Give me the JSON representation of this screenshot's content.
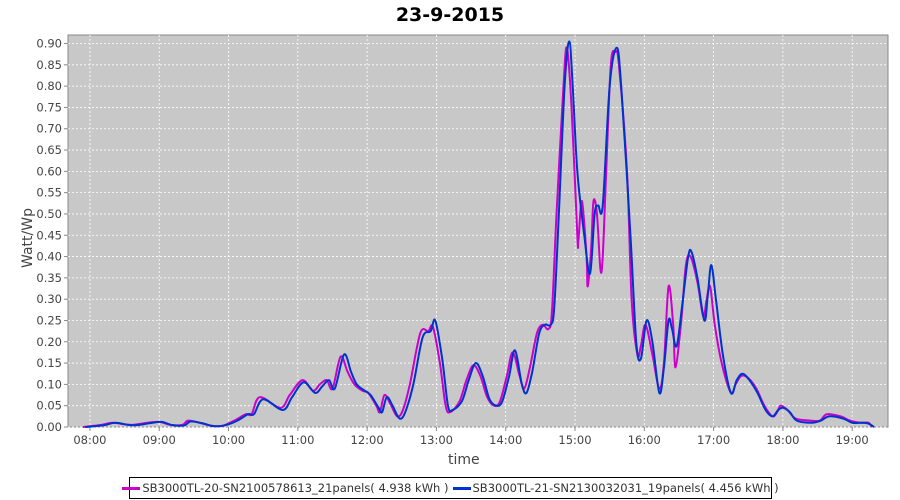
{
  "chart_data": {
    "type": "line",
    "title": "23-9-2015",
    "xlabel": "time",
    "ylabel": "Watt/Wp",
    "xlim": [
      "07:41",
      "19:31"
    ],
    "ylim": [
      0,
      0.92
    ],
    "x_ticks": [
      "08:00",
      "09:00",
      "10:00",
      "11:00",
      "12:00",
      "13:00",
      "14:00",
      "15:00",
      "16:00",
      "17:00",
      "18:00",
      "19:00"
    ],
    "y_ticks": [
      "0.00",
      "0.05",
      "0.10",
      "0.15",
      "0.20",
      "0.25",
      "0.30",
      "0.35",
      "0.40",
      "0.45",
      "0.50",
      "0.55",
      "0.60",
      "0.65",
      "0.70",
      "0.75",
      "0.80",
      "0.85",
      "0.90"
    ],
    "grid": true,
    "background": "#c8c8c8",
    "legend_position": "bottom",
    "series": [
      {
        "name": "SB3000TL-20-SN2100578613_21panels( 4.938 kWh )",
        "color": "#cc00cc",
        "points": [
          [
            "07:54",
            0
          ],
          [
            "08:10",
            0.005
          ],
          [
            "08:20",
            0.01
          ],
          [
            "08:35",
            0.005
          ],
          [
            "08:50",
            0.01
          ],
          [
            "09:00",
            0.012
          ],
          [
            "09:10",
            0.005
          ],
          [
            "09:20",
            0.005
          ],
          [
            "09:25",
            0.015
          ],
          [
            "09:35",
            0.01
          ],
          [
            "09:45",
            0.003
          ],
          [
            "09:55",
            0.003
          ],
          [
            "10:05",
            0.015
          ],
          [
            "10:15",
            0.03
          ],
          [
            "10:20",
            0.03
          ],
          [
            "10:27",
            0.07
          ],
          [
            "10:45",
            0.045
          ],
          [
            "10:53",
            0.075
          ],
          [
            "11:04",
            0.11
          ],
          [
            "11:13",
            0.085
          ],
          [
            "11:19",
            0.1
          ],
          [
            "11:25",
            0.11
          ],
          [
            "11:30",
            0.09
          ],
          [
            "11:37",
            0.165
          ],
          [
            "11:43",
            0.13
          ],
          [
            "11:49",
            0.1
          ],
          [
            "11:56",
            0.085
          ],
          [
            "12:01",
            0.08
          ],
          [
            "12:08",
            0.05
          ],
          [
            "12:11",
            0.035
          ],
          [
            "12:15",
            0.075
          ],
          [
            "12:20",
            0.055
          ],
          [
            "12:26",
            0.025
          ],
          [
            "12:31",
            0.04
          ],
          [
            "12:37",
            0.1
          ],
          [
            "12:46",
            0.22
          ],
          [
            "12:53",
            0.225
          ],
          [
            "12:57",
            0.235
          ],
          [
            "13:03",
            0.15
          ],
          [
            "13:08",
            0.05
          ],
          [
            "13:12",
            0.035
          ],
          [
            "13:20",
            0.06
          ],
          [
            "13:26",
            0.11
          ],
          [
            "13:32",
            0.145
          ],
          [
            "13:38",
            0.12
          ],
          [
            "13:44",
            0.07
          ],
          [
            "13:50",
            0.05
          ],
          [
            "13:55",
            0.06
          ],
          [
            "14:01",
            0.12
          ],
          [
            "14:06",
            0.175
          ],
          [
            "14:12",
            0.12
          ],
          [
            "14:16",
            0.09
          ],
          [
            "14:21",
            0.14
          ],
          [
            "14:27",
            0.22
          ],
          [
            "14:32",
            0.24
          ],
          [
            "14:37",
            0.23
          ],
          [
            "14:40",
            0.27
          ],
          [
            "14:44",
            0.5
          ],
          [
            "14:50",
            0.8
          ],
          [
            "14:53",
            0.89
          ],
          [
            "14:57",
            0.75
          ],
          [
            "15:02",
            0.45
          ],
          [
            "15:03",
            0.44
          ],
          [
            "15:06",
            0.53
          ],
          [
            "15:10",
            0.4
          ],
          [
            "15:11",
            0.33
          ],
          [
            "15:14",
            0.42
          ],
          [
            "15:16",
            0.53
          ],
          [
            "15:19",
            0.5
          ],
          [
            "15:22",
            0.37
          ],
          [
            "15:24",
            0.4
          ],
          [
            "15:27",
            0.6
          ],
          [
            "15:31",
            0.85
          ],
          [
            "15:35",
            0.88
          ],
          [
            "15:38",
            0.85
          ],
          [
            "15:45",
            0.6
          ],
          [
            "15:49",
            0.3
          ],
          [
            "15:54",
            0.17
          ],
          [
            "15:57",
            0.19
          ],
          [
            "16:01",
            0.24
          ],
          [
            "16:07",
            0.17
          ],
          [
            "16:13",
            0.09
          ],
          [
            "16:17",
            0.15
          ],
          [
            "16:21",
            0.33
          ],
          [
            "16:25",
            0.24
          ],
          [
            "16:27",
            0.14
          ],
          [
            "16:32",
            0.25
          ],
          [
            "16:36",
            0.38
          ],
          [
            "16:40",
            0.4
          ],
          [
            "16:46",
            0.34
          ],
          [
            "16:51",
            0.26
          ],
          [
            "16:54",
            0.3
          ],
          [
            "16:57",
            0.33
          ],
          [
            "17:01",
            0.24
          ],
          [
            "17:07",
            0.15
          ],
          [
            "17:15",
            0.08
          ],
          [
            "17:19",
            0.1
          ],
          [
            "17:24",
            0.12
          ],
          [
            "17:30",
            0.115
          ],
          [
            "17:37",
            0.09
          ],
          [
            "17:44",
            0.05
          ],
          [
            "17:51",
            0.025
          ],
          [
            "17:55",
            0.035
          ],
          [
            "17:58",
            0.05
          ],
          [
            "18:04",
            0.04
          ],
          [
            "18:11",
            0.02
          ],
          [
            "18:24",
            0.015
          ],
          [
            "18:32",
            0.015
          ],
          [
            "18:38",
            0.03
          ],
          [
            "18:50",
            0.025
          ],
          [
            "18:58",
            0.015
          ],
          [
            "19:07",
            0.01
          ],
          [
            "19:14",
            0.01
          ],
          [
            "19:17",
            0
          ]
        ]
      },
      {
        "name": "SB3000TL-21-SN2130032031_19panels( 4.456 kWh )",
        "color": "#0033cc",
        "points": [
          [
            "07:56",
            0
          ],
          [
            "08:12",
            0.004
          ],
          [
            "08:22",
            0.01
          ],
          [
            "08:37",
            0.004
          ],
          [
            "08:52",
            0.009
          ],
          [
            "09:02",
            0.012
          ],
          [
            "09:12",
            0.004
          ],
          [
            "09:22",
            0.004
          ],
          [
            "09:27",
            0.013
          ],
          [
            "09:37",
            0.009
          ],
          [
            "09:47",
            0.002
          ],
          [
            "09:57",
            0.004
          ],
          [
            "10:07",
            0.014
          ],
          [
            "10:17",
            0.03
          ],
          [
            "10:22",
            0.03
          ],
          [
            "10:30",
            0.065
          ],
          [
            "10:47",
            0.04
          ],
          [
            "10:55",
            0.07
          ],
          [
            "11:05",
            0.105
          ],
          [
            "11:15",
            0.08
          ],
          [
            "11:21",
            0.095
          ],
          [
            "11:27",
            0.11
          ],
          [
            "11:32",
            0.09
          ],
          [
            "11:40",
            0.17
          ],
          [
            "11:46",
            0.13
          ],
          [
            "11:51",
            0.1
          ],
          [
            "11:58",
            0.085
          ],
          [
            "12:03",
            0.075
          ],
          [
            "12:10",
            0.045
          ],
          [
            "12:13",
            0.035
          ],
          [
            "12:17",
            0.07
          ],
          [
            "12:22",
            0.05
          ],
          [
            "12:28",
            0.02
          ],
          [
            "12:33",
            0.035
          ],
          [
            "12:40",
            0.1
          ],
          [
            "12:48",
            0.21
          ],
          [
            "12:55",
            0.225
          ],
          [
            "12:59",
            0.25
          ],
          [
            "13:05",
            0.16
          ],
          [
            "13:10",
            0.05
          ],
          [
            "13:14",
            0.04
          ],
          [
            "13:22",
            0.06
          ],
          [
            "13:28",
            0.11
          ],
          [
            "13:34",
            0.15
          ],
          [
            "13:40",
            0.12
          ],
          [
            "13:46",
            0.065
          ],
          [
            "13:52",
            0.05
          ],
          [
            "13:57",
            0.06
          ],
          [
            "14:03",
            0.12
          ],
          [
            "14:08",
            0.18
          ],
          [
            "14:14",
            0.1
          ],
          [
            "14:18",
            0.08
          ],
          [
            "14:23",
            0.13
          ],
          [
            "14:29",
            0.22
          ],
          [
            "14:34",
            0.24
          ],
          [
            "14:39",
            0.24
          ],
          [
            "14:42",
            0.28
          ],
          [
            "14:46",
            0.5
          ],
          [
            "14:51",
            0.8
          ],
          [
            "14:55",
            0.905
          ],
          [
            "14:58",
            0.8
          ],
          [
            "15:02",
            0.6
          ],
          [
            "15:08",
            0.45
          ],
          [
            "15:13",
            0.36
          ],
          [
            "15:17",
            0.5
          ],
          [
            "15:20",
            0.52
          ],
          [
            "15:24",
            0.52
          ],
          [
            "15:30",
            0.8
          ],
          [
            "15:36",
            0.89
          ],
          [
            "15:40",
            0.8
          ],
          [
            "15:48",
            0.45
          ],
          [
            "15:53",
            0.2
          ],
          [
            "15:57",
            0.16
          ],
          [
            "16:02",
            0.25
          ],
          [
            "16:07",
            0.2
          ],
          [
            "16:13",
            0.08
          ],
          [
            "16:17",
            0.14
          ],
          [
            "16:21",
            0.25
          ],
          [
            "16:24",
            0.23
          ],
          [
            "16:28",
            0.19
          ],
          [
            "16:33",
            0.29
          ],
          [
            "16:38",
            0.4
          ],
          [
            "16:41",
            0.41
          ],
          [
            "16:46",
            0.35
          ],
          [
            "16:52",
            0.25
          ],
          [
            "16:55",
            0.31
          ],
          [
            "16:58",
            0.38
          ],
          [
            "17:02",
            0.3
          ],
          [
            "17:08",
            0.17
          ],
          [
            "17:15",
            0.08
          ],
          [
            "17:20",
            0.11
          ],
          [
            "17:25",
            0.125
          ],
          [
            "17:31",
            0.11
          ],
          [
            "17:38",
            0.08
          ],
          [
            "17:45",
            0.04
          ],
          [
            "17:51",
            0.025
          ],
          [
            "17:56",
            0.04
          ],
          [
            "18:00",
            0.045
          ],
          [
            "18:06",
            0.035
          ],
          [
            "18:12",
            0.015
          ],
          [
            "18:25",
            0.01
          ],
          [
            "18:33",
            0.015
          ],
          [
            "18:40",
            0.025
          ],
          [
            "18:52",
            0.02
          ],
          [
            "19:00",
            0.01
          ],
          [
            "19:08",
            0.01
          ],
          [
            "19:14",
            0.008
          ],
          [
            "19:19",
            0
          ]
        ]
      }
    ]
  }
}
